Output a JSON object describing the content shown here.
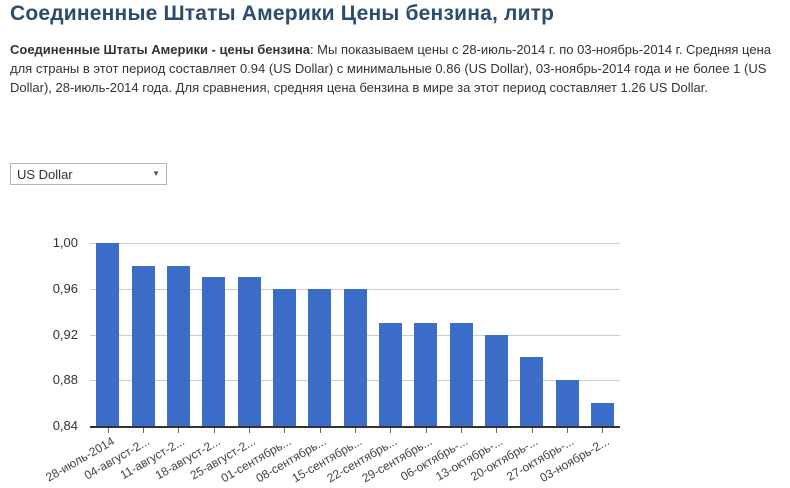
{
  "header": {
    "title": "Соединенные Штаты Америки Цены бензина, литр"
  },
  "description": {
    "bold": "Соединенные Штаты Америки - цены бензина",
    "text": ": Мы показываем цены с 28-июль-2014 г. по 03-ноябрь-2014 г. Средняя цена для страны в этот период составляет 0.94 (US Dollar) с минимальные 0.86 (US Dollar), 03-ноябрь-2014 года и не более 1 (US Dollar), 28-июль-2014 года. Для сравнения, средняя цена бензина в мире за этот период составляет 1.26 US Dollar."
  },
  "currency_select": {
    "value": "US Dollar"
  },
  "icons": {
    "chevron_down": "▼"
  },
  "colors": {
    "title": "#2c4c6e",
    "bar": "#3b6cc8",
    "gridline": "#cccccc",
    "axis_line": "#333333",
    "axis_text": "#444444"
  },
  "chart_data": {
    "type": "bar",
    "title": "",
    "categories": [
      "28-июль-2014",
      "04-август-2...",
      "11-август-2...",
      "18-август-2...",
      "25-август-2...",
      "01-сентябрь...",
      "08-сентябрь...",
      "15-сентябрь...",
      "22-сентябрь...",
      "29-сентябрь...",
      "06-октябрь-...",
      "13-октябрь-...",
      "20-октябрь-...",
      "27-октябрь-...",
      "03-ноябрь-2..."
    ],
    "values": [
      1.0,
      0.98,
      0.98,
      0.97,
      0.97,
      0.96,
      0.96,
      0.96,
      0.93,
      0.93,
      0.93,
      0.92,
      0.9,
      0.88,
      0.86
    ],
    "xlabel": "",
    "ylabel": "",
    "ylim": [
      0.84,
      1.0
    ],
    "y_ticks": [
      1.0,
      0.96,
      0.92,
      0.88,
      0.84
    ],
    "y_tick_labels": [
      "1,00",
      "0,96",
      "0,92",
      "0,88",
      "0,84"
    ],
    "grid": "horizontal",
    "legend": "none",
    "unit": "US Dollar"
  }
}
